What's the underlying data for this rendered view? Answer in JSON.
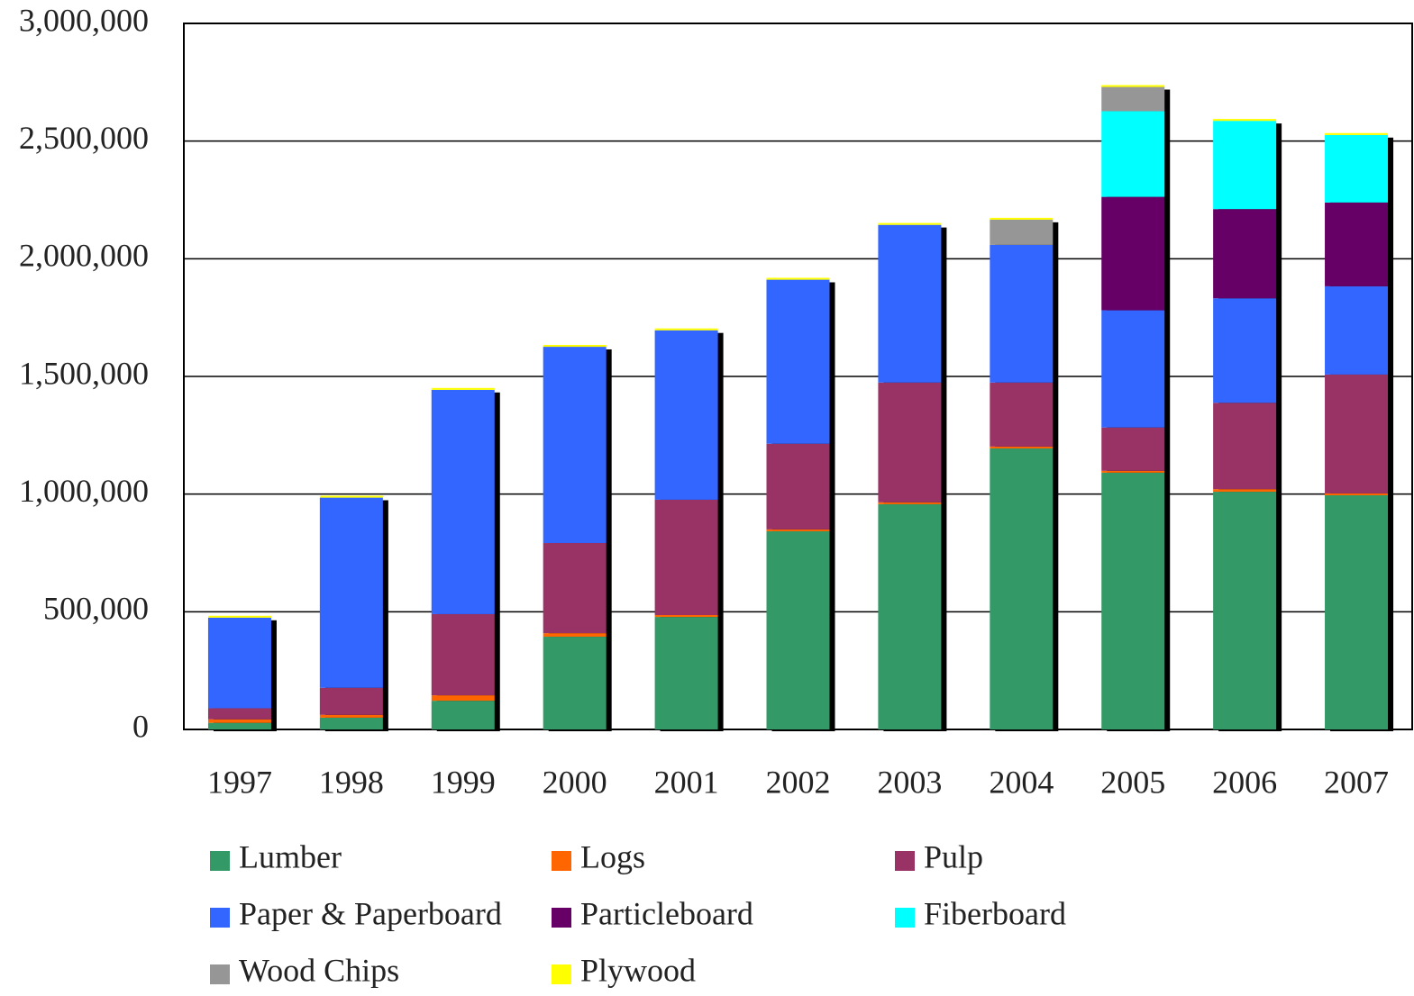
{
  "chart_data": {
    "type": "stacked_bar",
    "categories": [
      "1997",
      "1998",
      "1999",
      "2000",
      "2001",
      "2002",
      "2003",
      "2004",
      "2005",
      "2006",
      "2007"
    ],
    "series": [
      {
        "name": "Lumber",
        "color": "#339966",
        "values": [
          28000,
          50000,
          122000,
          394000,
          478000,
          842000,
          957000,
          1194000,
          1091000,
          1010000,
          995000
        ]
      },
      {
        "name": "Logs",
        "color": "#ff6600",
        "values": [
          15000,
          12000,
          23000,
          15000,
          8000,
          8000,
          8000,
          8000,
          8000,
          11000,
          8000
        ]
      },
      {
        "name": "Pulp",
        "color": "#993366",
        "values": [
          47000,
          115000,
          345000,
          383000,
          490000,
          364000,
          509000,
          272000,
          184000,
          367000,
          505000
        ]
      },
      {
        "name": "Paper & Paperboard",
        "color": "#3366ff",
        "values": [
          385000,
          808000,
          953000,
          834000,
          720000,
          697000,
          670000,
          585000,
          498000,
          444000,
          375000
        ]
      },
      {
        "name": "Particleboard",
        "color": "#660066",
        "values": [
          0,
          0,
          0,
          0,
          0,
          0,
          0,
          0,
          482000,
          379000,
          356000
        ]
      },
      {
        "name": "Fiberboard",
        "color": "#00ffff",
        "values": [
          0,
          0,
          0,
          0,
          0,
          0,
          0,
          0,
          364000,
          375000,
          287000
        ]
      },
      {
        "name": "Wood Chips",
        "color": "#969696",
        "values": [
          0,
          0,
          0,
          0,
          0,
          0,
          0,
          107000,
          103000,
          0,
          0
        ]
      },
      {
        "name": "Plywood",
        "color": "#ffff00",
        "values": [
          8000,
          8000,
          8000,
          8000,
          8000,
          8000,
          8000,
          8000,
          8000,
          8000,
          8000
        ]
      }
    ],
    "ylim": [
      0,
      3000000
    ],
    "yticks": [
      0,
      {
        "value": 500000,
        "label": "500,000"
      },
      {
        "value": 1000000,
        "label": "1,000,000"
      },
      {
        "value": 1500000,
        "label": "1,500,000"
      },
      {
        "value": 2000000,
        "label": "2,000,000"
      },
      {
        "value": 2500000,
        "label": "2,500,000"
      },
      {
        "value": 3000000,
        "label": "3,000,000"
      }
    ],
    "grid": true,
    "legend": "bottom"
  }
}
